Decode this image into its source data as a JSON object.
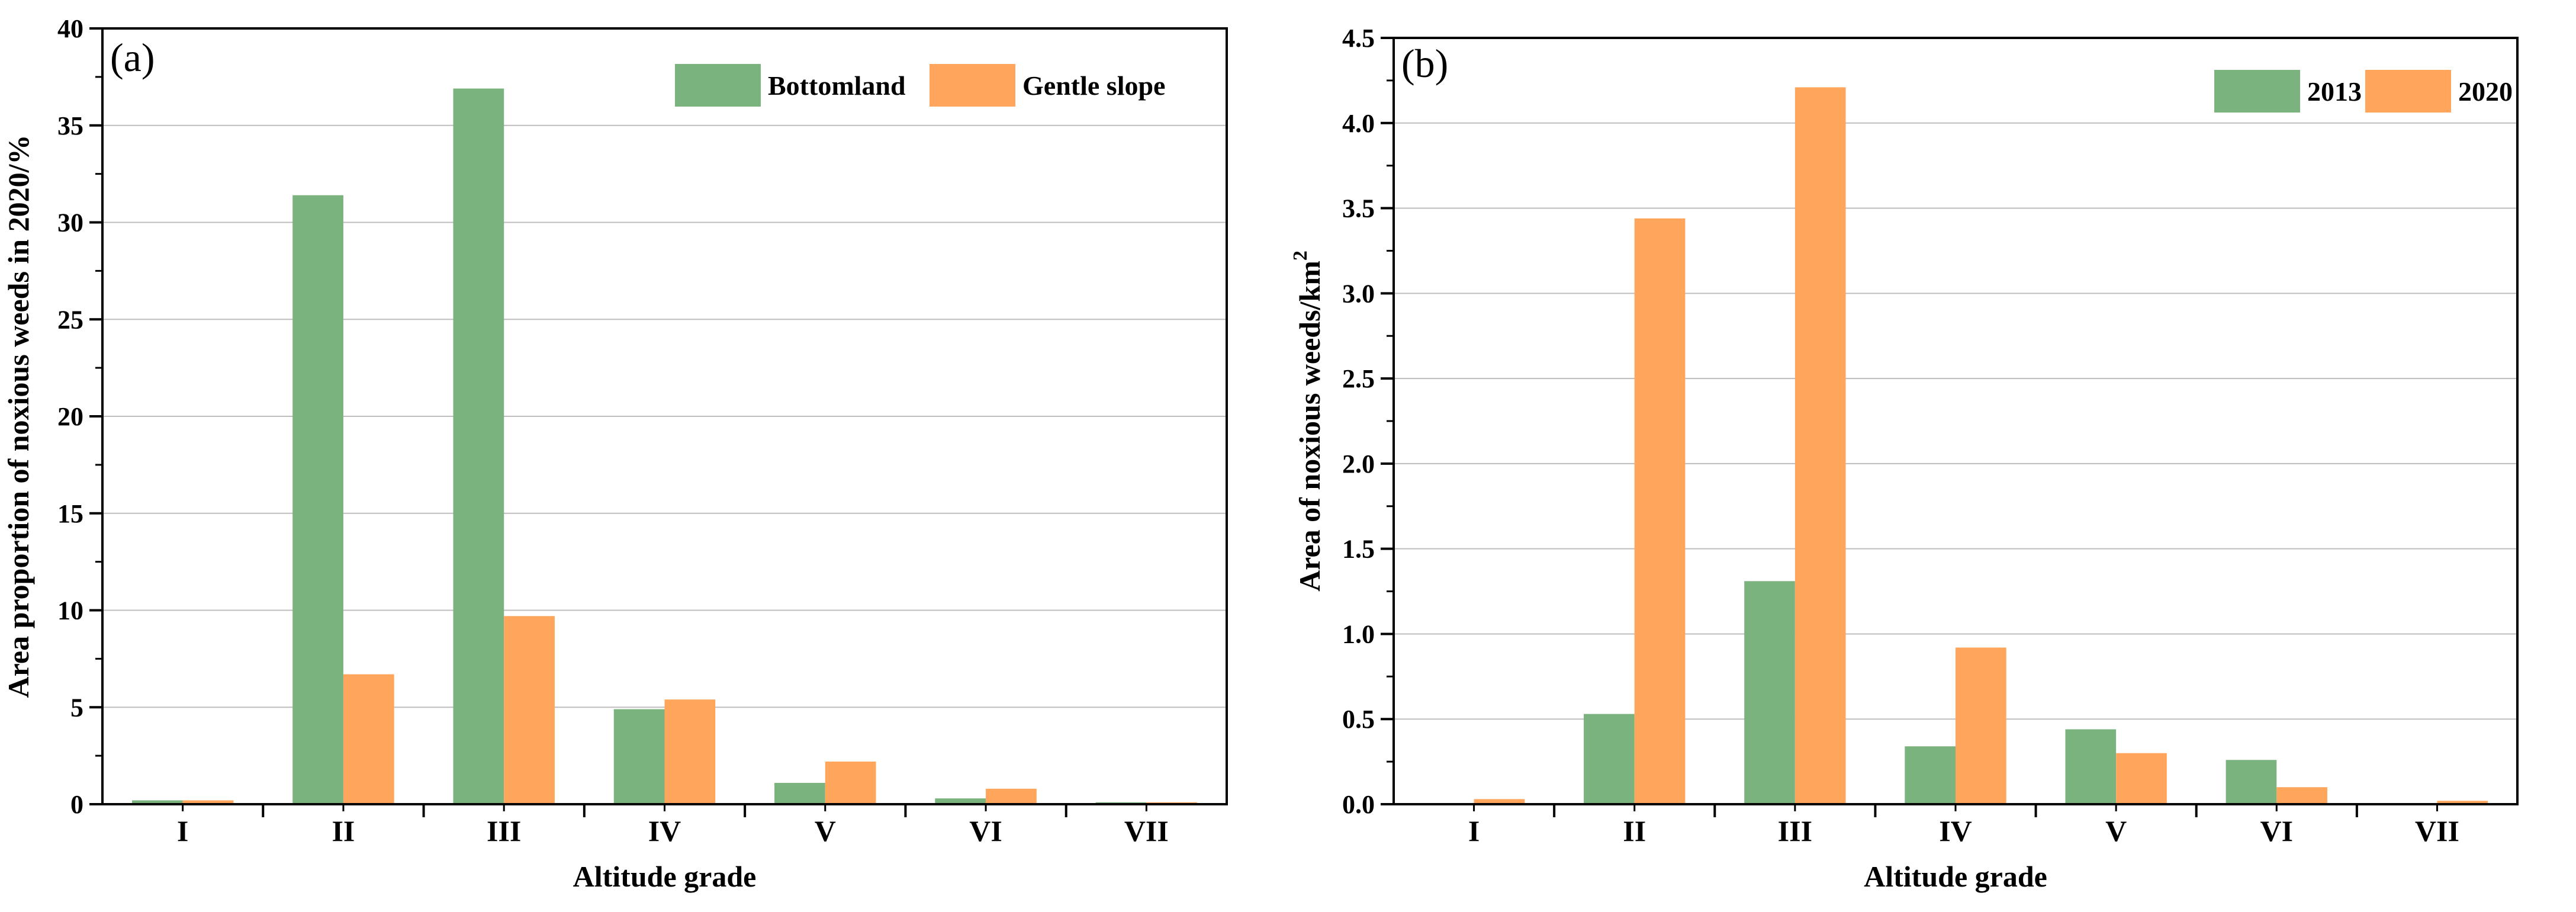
{
  "colors": {
    "green": "#7bb37f",
    "orange": "#ffa65c",
    "grid": "#bdbdbd",
    "axis": "#000000"
  },
  "chart_data": [
    {
      "type": "bar",
      "panel": "(a)",
      "title": "",
      "xlabel": "Altitude grade",
      "ylabel": "Area proportion of noxious weeds in 2020/%",
      "categories": [
        "I",
        "II",
        "III",
        "IV",
        "V",
        "VI",
        "VII"
      ],
      "ylim": [
        0,
        40
      ],
      "yticks": [
        0,
        5,
        10,
        15,
        20,
        25,
        30,
        35,
        40
      ],
      "ytick_labels": [
        "0",
        "5",
        "10",
        "15",
        "20",
        "25",
        "30",
        "35",
        "40"
      ],
      "grid": true,
      "legend_position": "top-right",
      "series": [
        {
          "name": "Bottomland",
          "color": "#7bb37f",
          "values": [
            0.2,
            31.4,
            36.9,
            4.9,
            1.1,
            0.3,
            0.1
          ]
        },
        {
          "name": "Gentle slope",
          "color": "#ffa65c",
          "values": [
            0.2,
            6.7,
            9.7,
            5.4,
            2.2,
            0.8,
            0.1
          ]
        }
      ]
    },
    {
      "type": "bar",
      "panel": "(b)",
      "title": "",
      "xlabel": "Altitude grade",
      "ylabel": "Area of noxious weeds/km",
      "ylabel_superscript": "2",
      "categories": [
        "I",
        "II",
        "III",
        "IV",
        "V",
        "VI",
        "VII"
      ],
      "ylim": [
        0,
        4.5
      ],
      "yticks": [
        0,
        0.5,
        1.0,
        1.5,
        2.0,
        2.5,
        3.0,
        3.5,
        4.0,
        4.5
      ],
      "ytick_labels": [
        "0.0",
        "0.5",
        "1.0",
        "1.5",
        "2.0",
        "2.5",
        "3.0",
        "3.5",
        "4.0",
        "4.5"
      ],
      "grid": true,
      "legend_position": "top-right",
      "series": [
        {
          "name": "2013",
          "color": "#7bb37f",
          "values": [
            0.0,
            0.53,
            1.31,
            0.34,
            0.44,
            0.26,
            0.0
          ]
        },
        {
          "name": "2020",
          "color": "#ffa65c",
          "values": [
            0.03,
            3.44,
            4.21,
            0.92,
            0.3,
            0.1,
            0.02
          ]
        }
      ]
    }
  ]
}
